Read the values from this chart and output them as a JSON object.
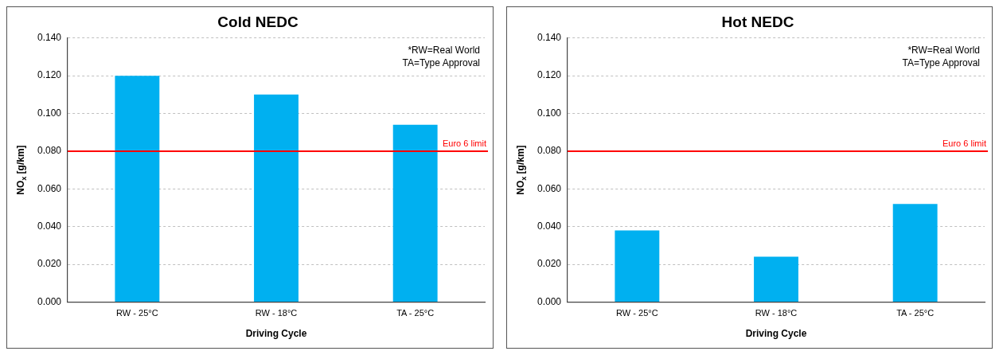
{
  "chart_data": [
    {
      "type": "bar",
      "title": "Cold NEDC",
      "xlabel": "Driving Cycle",
      "ylabel": "NO$_{x}$ [g/km]",
      "categories": [
        "RW - 25°C",
        "RW - 18°C",
        "TA - 25°C"
      ],
      "values": [
        0.12,
        0.11,
        0.094
      ],
      "color": "#00b0f0",
      "ylim": [
        0,
        0.14
      ],
      "yticks": [
        {
          "value": 0,
          "label": "0.000"
        },
        {
          "value": 0.02,
          "label": "0.020"
        },
        {
          "value": 0.04,
          "label": "0.040"
        },
        {
          "value": 0.06,
          "label": "0.060"
        },
        {
          "value": 0.08,
          "label": "0.080"
        },
        {
          "value": 0.1,
          "label": "0.100"
        },
        {
          "value": 0.12,
          "label": "0.120"
        },
        {
          "value": 0.14,
          "label": "0.140"
        }
      ],
      "grid": "y",
      "legend": false,
      "ref_lines": [
        {
          "axis": "y",
          "value": 0.08,
          "label": "Euro 6 limit",
          "color": "#ff0000"
        }
      ],
      "annotations": [
        "*RW=Real World",
        "TA=Type Approval"
      ]
    },
    {
      "type": "bar",
      "title": "Hot NEDC",
      "xlabel": "Driving Cycle",
      "ylabel": "NO$_{x}$ [g/km]",
      "categories": [
        "RW - 25°C",
        "RW - 18°C",
        "TA - 25°C"
      ],
      "values": [
        0.038,
        0.024,
        0.052
      ],
      "color": "#00b0f0",
      "ylim": [
        0,
        0.14
      ],
      "yticks": [
        {
          "value": 0,
          "label": "0.000"
        },
        {
          "value": 0.02,
          "label": "0.020"
        },
        {
          "value": 0.04,
          "label": "0.040"
        },
        {
          "value": 0.06,
          "label": "0.060"
        },
        {
          "value": 0.08,
          "label": "0.080"
        },
        {
          "value": 0.1,
          "label": "0.100"
        },
        {
          "value": 0.12,
          "label": "0.120"
        },
        {
          "value": 0.14,
          "label": "0.140"
        }
      ],
      "grid": "y",
      "legend": false,
      "ref_lines": [
        {
          "axis": "y",
          "value": 0.08,
          "label": "Euro 6 limit",
          "color": "#ff0000"
        }
      ],
      "annotations": [
        "*RW=Real World",
        "TA=Type Approval"
      ]
    }
  ]
}
